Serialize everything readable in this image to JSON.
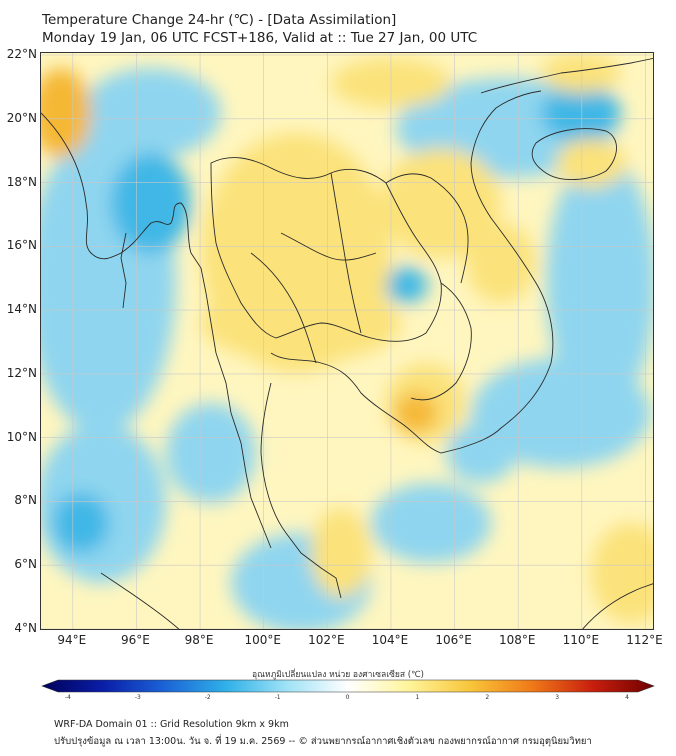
{
  "header": {
    "title_line1": "Temperature Change 24-hr (℃) - [Data Assimilation]",
    "title_line2": "Monday 19 Jan, 06 UTC FCST+186, Valid at :: Tue 27 Jan, 00 UTC"
  },
  "map": {
    "lat_labels": [
      "22°N",
      "20°N",
      "18°N",
      "16°N",
      "14°N",
      "12°N",
      "10°N",
      "8°N",
      "6°N",
      "4°N"
    ],
    "lon_labels": [
      "94°E",
      "96°E",
      "98°E",
      "100°E",
      "102°E",
      "104°E",
      "106°E",
      "108°E",
      "110°E",
      "112°E"
    ],
    "lat_range": [
      4,
      22
    ],
    "lon_range": [
      93,
      112.3
    ],
    "colors": {
      "warm_light": "#fff6bf",
      "warm": "#fbe27a",
      "warm_strong": "#f5b836",
      "cool_light": "#e2f4fb",
      "cool": "#8fd5ef",
      "cool_strong": "#3fb7e6",
      "land_border": "#2b2b2b",
      "grid": "#c8c8c8"
    }
  },
  "colorbar": {
    "label": "อุณหภูมิเปลี่ยนแปลง หน่วย องศาเซลเซียส (℃)",
    "ticks": [
      "-4",
      "-3",
      "-2",
      "-1",
      "0",
      "1",
      "2",
      "3",
      "4"
    ],
    "range": [
      -4,
      4
    ],
    "stops": [
      "#00005a",
      "#0a1ea8",
      "#1b63d6",
      "#2fb0e8",
      "#9fe2f6",
      "#ffffff",
      "#fff49a",
      "#f8c53a",
      "#f07a18",
      "#c81e0e",
      "#6e0000"
    ]
  },
  "footer": {
    "line1": "WRF-DA Domain 01 :: Grid Resolution 9km x 9km",
    "line2": "ปรับปรุงข้อมูล ณ เวลา 13:00น. วัน จ. ที่ 19 ม.ค. 2569 -- © ส่วนพยากรณ์อากาศเชิงตัวเลข กองพยากรณ์อากาศ กรมอุตุนิยมวิทยา"
  }
}
